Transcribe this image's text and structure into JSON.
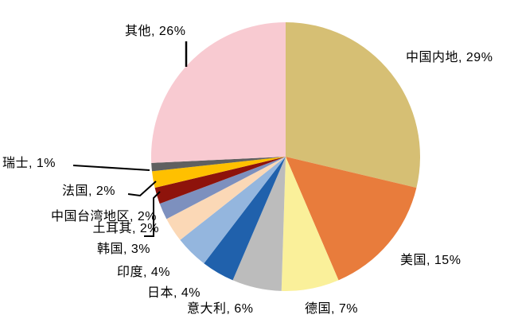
{
  "chart_data": {
    "type": "pie",
    "unit": "%",
    "direction": "clockwise",
    "start_angle_deg": 0,
    "legend": "none",
    "slices": [
      {
        "key": "china-mainland",
        "name": "中国内地",
        "value": 29,
        "label": "中国内地, 29%",
        "color": "#D6BF74"
      },
      {
        "key": "usa",
        "name": "美国",
        "value": 15,
        "label": "美国, 15%",
        "color": "#E87C3C"
      },
      {
        "key": "germany",
        "name": "德国",
        "value": 7,
        "label": "德国, 7%",
        "color": "#FAF09A"
      },
      {
        "key": "italy",
        "name": "意大利",
        "value": 6,
        "label": "意大利, 6%",
        "color": "#BCBCBC"
      },
      {
        "key": "japan",
        "name": "日本",
        "value": 4,
        "label": "日本, 4%",
        "color": "#2061AC"
      },
      {
        "key": "india",
        "name": "印度",
        "value": 4,
        "label": "印度, 4%",
        "color": "#94B6DE"
      },
      {
        "key": "south-korea",
        "name": "韩国",
        "value": 3,
        "label": "韩国, 3%",
        "color": "#FBD8B6"
      },
      {
        "key": "turkey",
        "name": "土耳其",
        "value": 2,
        "label": "土耳其, 2%",
        "color": "#7D90BE"
      },
      {
        "key": "taiwan-china",
        "name": "中国台湾地区",
        "value": 2,
        "label": "中国台湾地区, 2%",
        "color": "#8E130B"
      },
      {
        "key": "france",
        "name": "法国",
        "value": 2,
        "label": "法国, 2%",
        "color": "#FFC000"
      },
      {
        "key": "switzerland",
        "name": "瑞士",
        "value": 1,
        "label": "瑞士, 1%",
        "color": "#606060"
      },
      {
        "key": "others",
        "name": "其他",
        "value": 26,
        "label": "其他, 26%",
        "color": "#F8CAD1"
      }
    ]
  }
}
